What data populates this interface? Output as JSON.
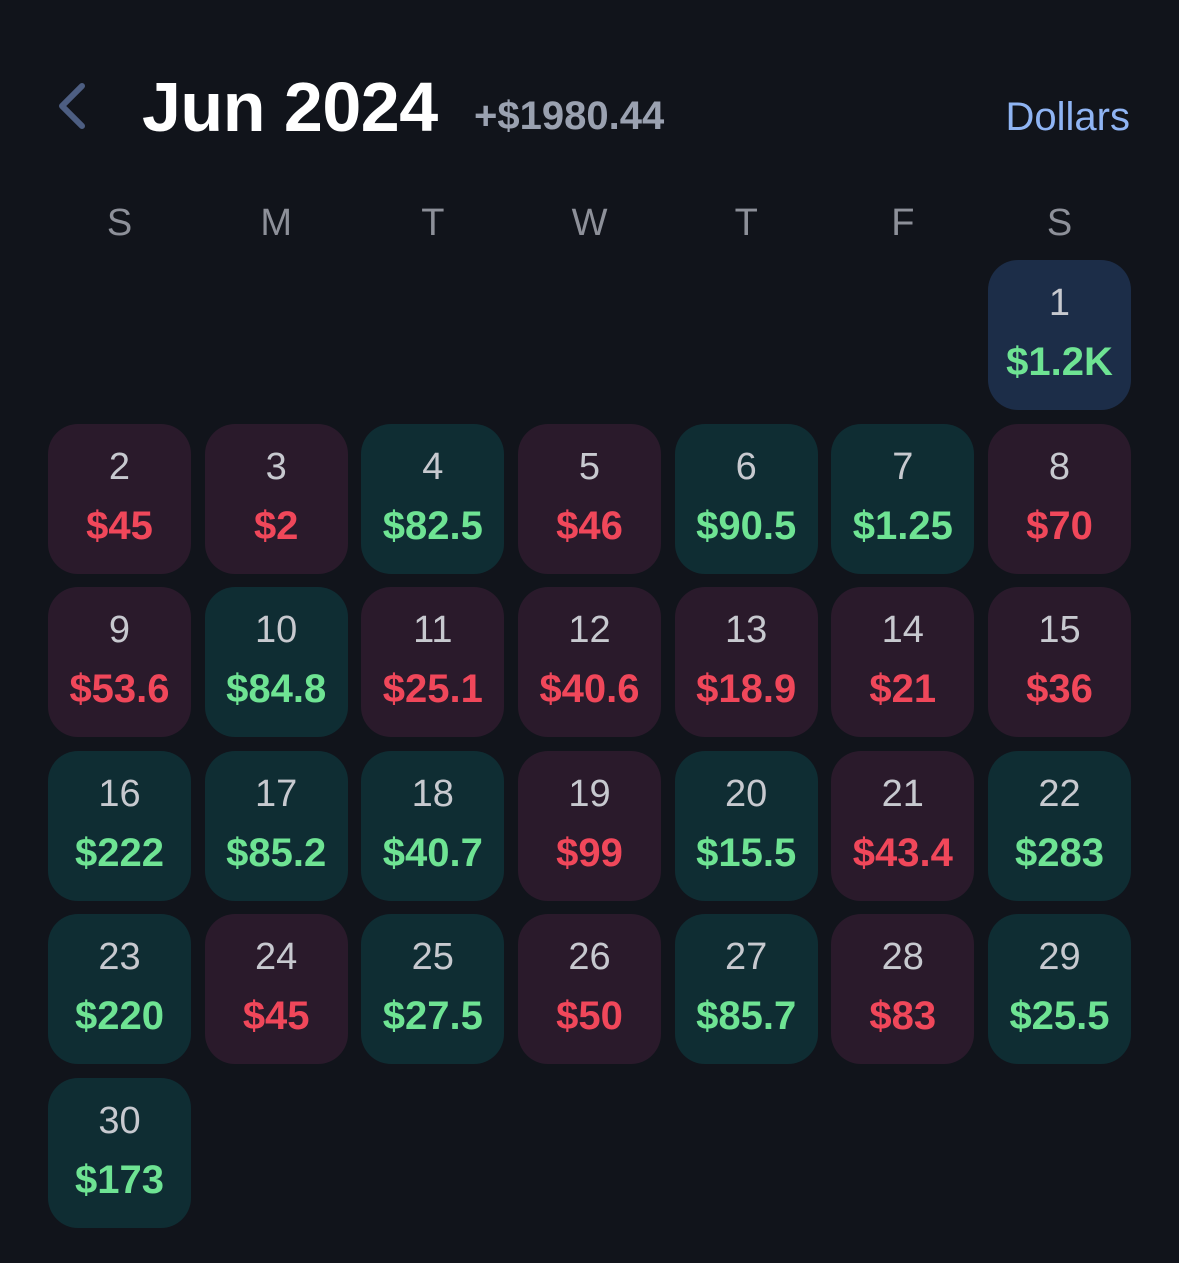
{
  "header": {
    "back_icon": "chevron-left-icon",
    "month_title": "Jun 2024",
    "month_total": "+$1980.44",
    "unit_toggle": "Dollars"
  },
  "weekdays": [
    "S",
    "M",
    "T",
    "W",
    "T",
    "F",
    "S"
  ],
  "colors": {
    "background": "#11141b",
    "profit_cell": "#0f2d33",
    "loss_cell": "#2a1a2b",
    "today_cell": "#1c2d48",
    "profit_text": "#6ee393",
    "loss_text": "#f0475a",
    "accent": "#8fb4f3"
  },
  "first_weekday_index": 6,
  "days": [
    {
      "day": "1",
      "value": "$1.2K",
      "status": "today"
    },
    {
      "day": "2",
      "value": "$45",
      "status": "loss"
    },
    {
      "day": "3",
      "value": "$2",
      "status": "loss"
    },
    {
      "day": "4",
      "value": "$82.5",
      "status": "profit"
    },
    {
      "day": "5",
      "value": "$46",
      "status": "loss"
    },
    {
      "day": "6",
      "value": "$90.5",
      "status": "profit"
    },
    {
      "day": "7",
      "value": "$1.25",
      "status": "profit"
    },
    {
      "day": "8",
      "value": "$70",
      "status": "loss"
    },
    {
      "day": "9",
      "value": "$53.6",
      "status": "loss"
    },
    {
      "day": "10",
      "value": "$84.8",
      "status": "profit"
    },
    {
      "day": "11",
      "value": "$25.1",
      "status": "loss"
    },
    {
      "day": "12",
      "value": "$40.6",
      "status": "loss"
    },
    {
      "day": "13",
      "value": "$18.9",
      "status": "loss"
    },
    {
      "day": "14",
      "value": "$21",
      "status": "loss"
    },
    {
      "day": "15",
      "value": "$36",
      "status": "loss"
    },
    {
      "day": "16",
      "value": "$222",
      "status": "profit"
    },
    {
      "day": "17",
      "value": "$85.2",
      "status": "profit"
    },
    {
      "day": "18",
      "value": "$40.7",
      "status": "profit"
    },
    {
      "day": "19",
      "value": "$99",
      "status": "loss"
    },
    {
      "day": "20",
      "value": "$15.5",
      "status": "profit"
    },
    {
      "day": "21",
      "value": "$43.4",
      "status": "loss"
    },
    {
      "day": "22",
      "value": "$283",
      "status": "profit"
    },
    {
      "day": "23",
      "value": "$220",
      "status": "profit"
    },
    {
      "day": "24",
      "value": "$45",
      "status": "loss"
    },
    {
      "day": "25",
      "value": "$27.5",
      "status": "profit"
    },
    {
      "day": "26",
      "value": "$50",
      "status": "loss"
    },
    {
      "day": "27",
      "value": "$85.7",
      "status": "profit"
    },
    {
      "day": "28",
      "value": "$83",
      "status": "loss"
    },
    {
      "day": "29",
      "value": "$25.5",
      "status": "profit"
    },
    {
      "day": "30",
      "value": "$173",
      "status": "profit"
    }
  ]
}
